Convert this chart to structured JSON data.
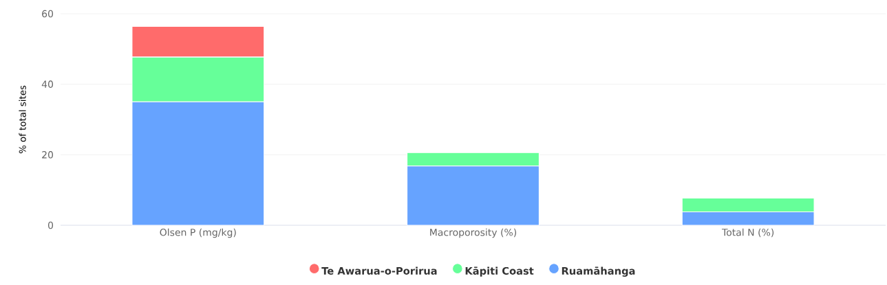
{
  "chart_data": {
    "type": "bar",
    "stacked": true,
    "ylabel": "% of total sites",
    "categories": [
      "Olsen P (mg/kg)",
      "Macroporosity (%)",
      "Total N (%)"
    ],
    "series": [
      {
        "name": "Ruamāhanga",
        "color": "#66a3ff",
        "values": [
          35,
          16.8,
          3.8
        ]
      },
      {
        "name": "Kāpiti Coast",
        "color": "#66ff99",
        "values": [
          12.7,
          3.8,
          3.9
        ]
      },
      {
        "name": "Te Awarua-o-Porirua",
        "color": "#ff6b6b",
        "values": [
          8.7,
          0,
          0
        ]
      }
    ],
    "ylim": [
      0,
      60
    ],
    "yticks": [
      0,
      20,
      40,
      60
    ],
    "grid": "y",
    "legend": "bottom"
  }
}
